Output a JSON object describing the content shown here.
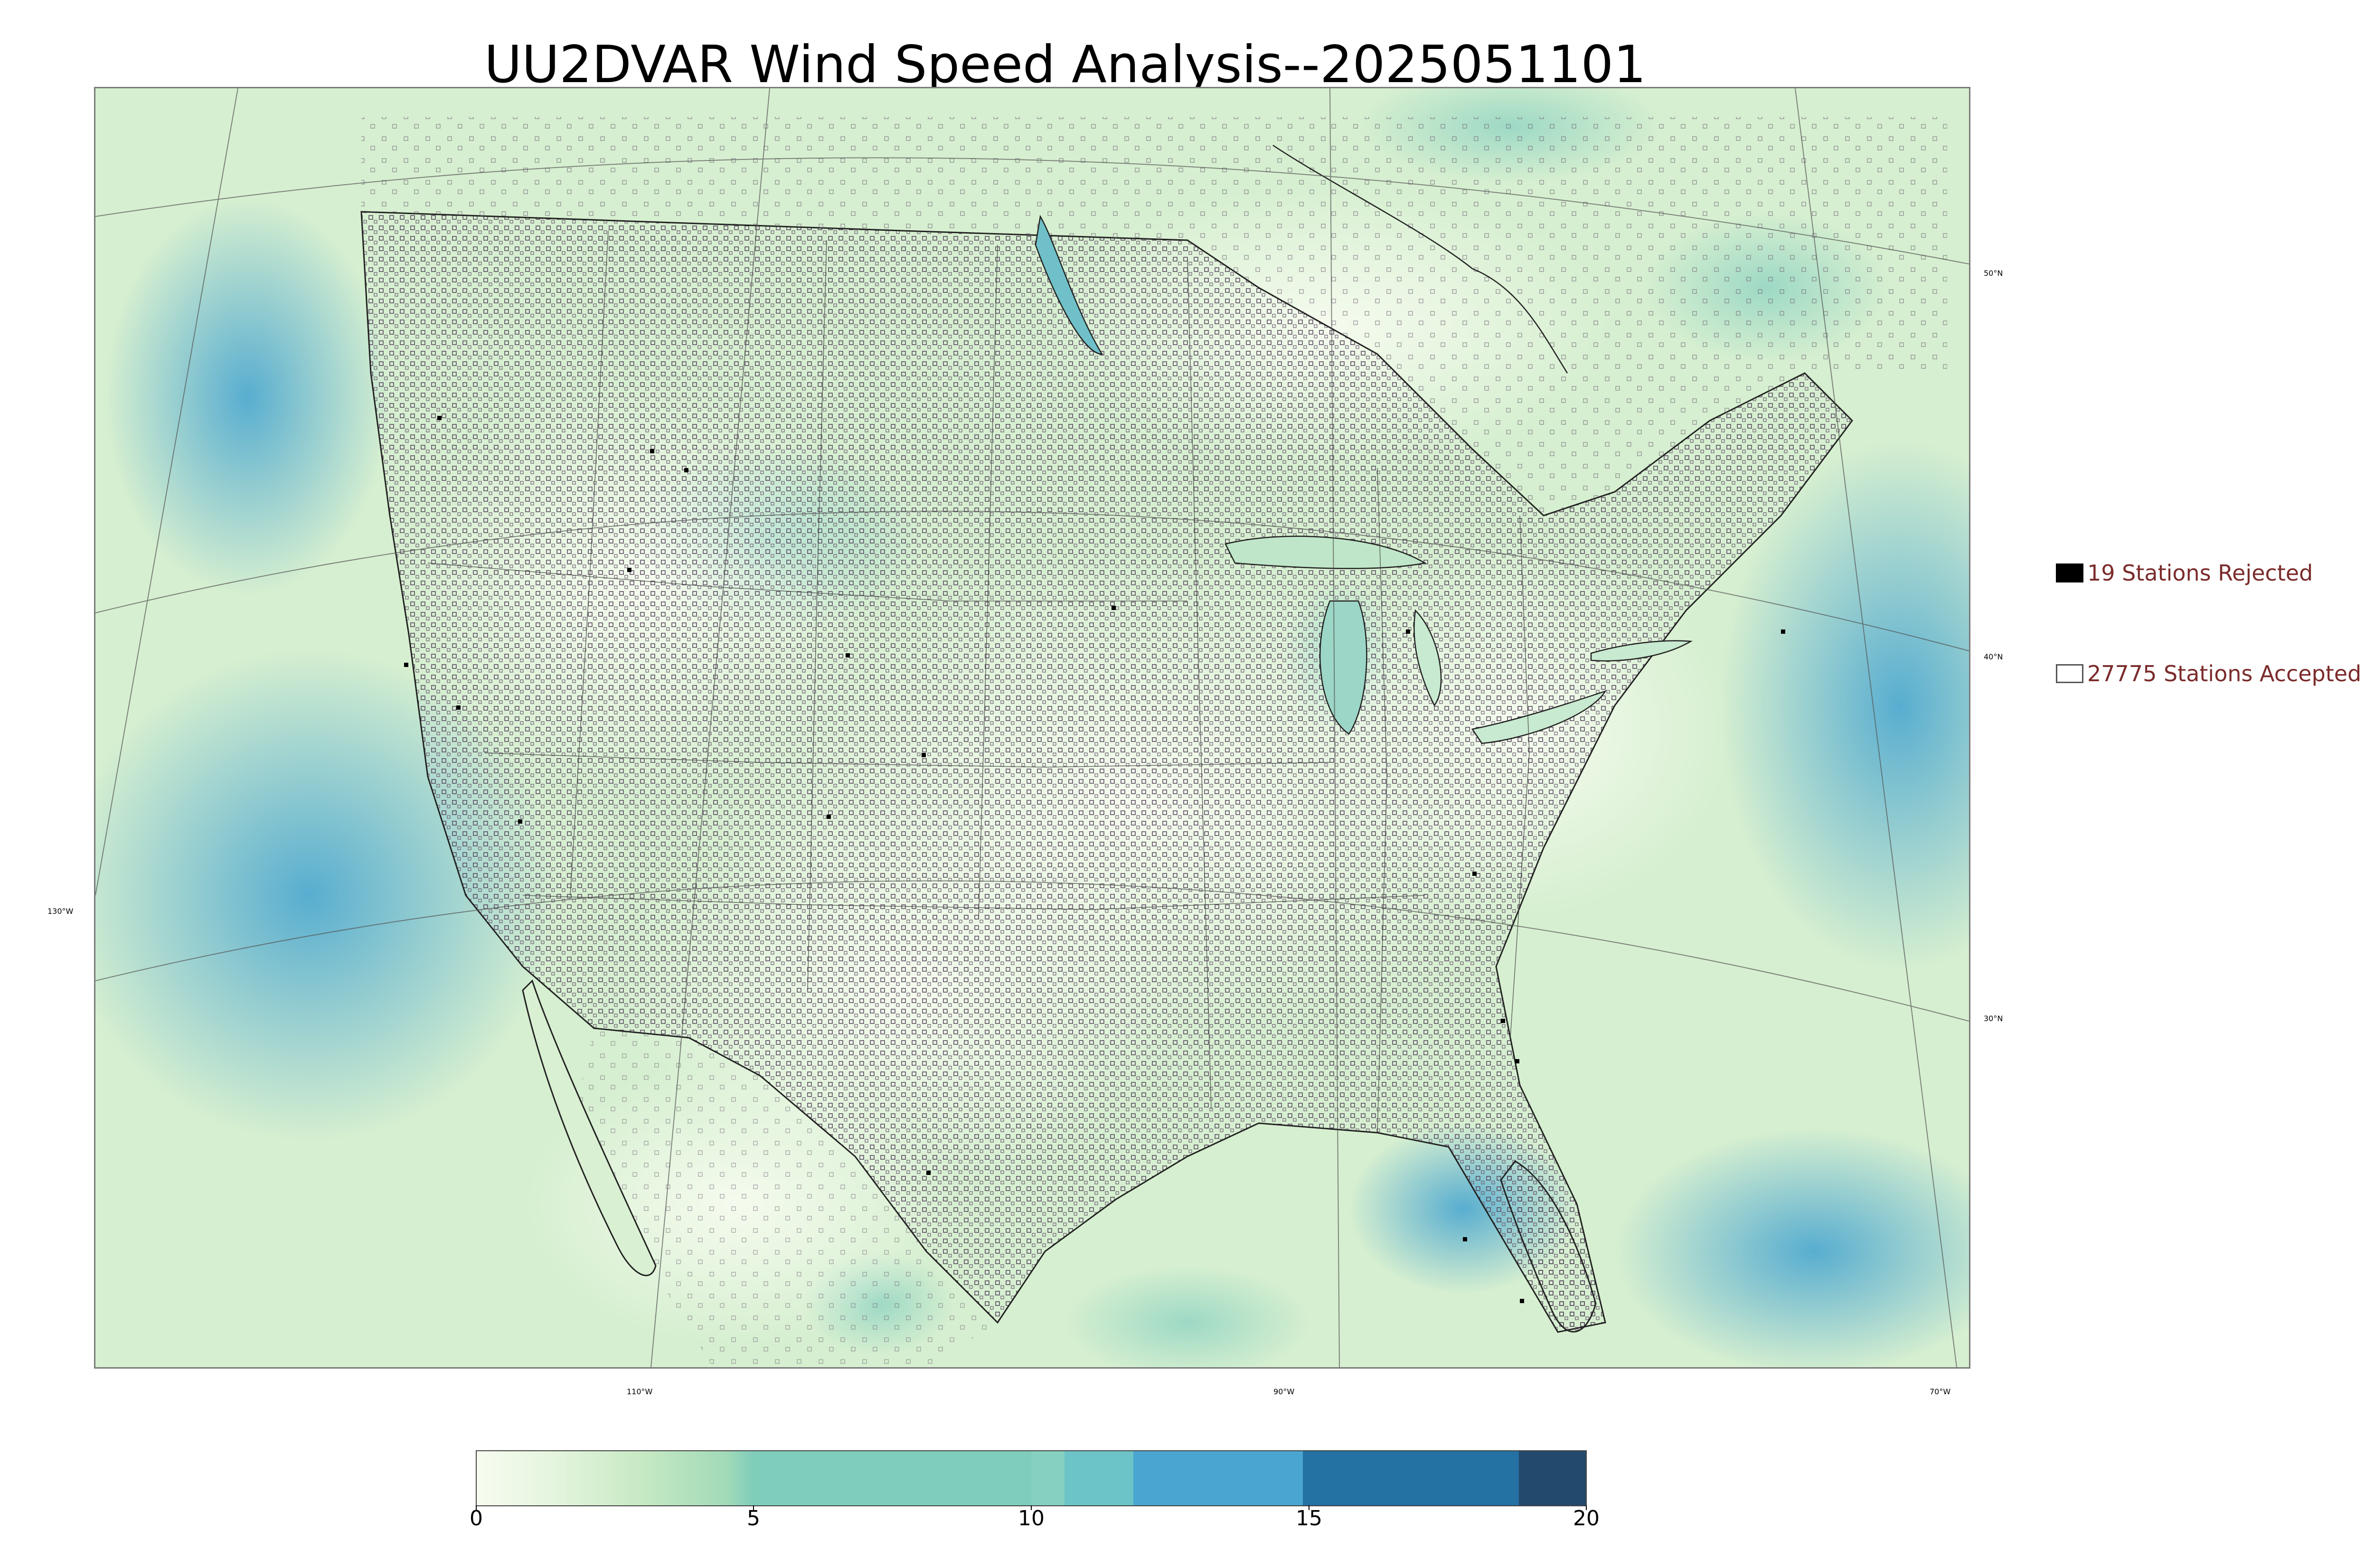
{
  "title": "UU2DVAR Wind Speed Analysis--2025051101",
  "map": {
    "lat_labels": [
      "50°N",
      "40°N",
      "30°N"
    ],
    "lon_labels": [
      "130°W",
      "110°W",
      "90°W",
      "70°W"
    ],
    "ocean_color": "#4aa6d0",
    "land_color": "#e4f4dc",
    "rejected_station_count": 19,
    "accepted_station_count": 27775
  },
  "legend": {
    "rejected": {
      "label": "19 Stations Rejected",
      "marker": "filled-black-square",
      "color": "#000000"
    },
    "accepted": {
      "label": "27775 Stations Accepted",
      "marker": "hollow-square",
      "color": "#ffffff"
    },
    "text_color": "#7b2b2b"
  },
  "colorbar": {
    "ticks": [
      "0",
      "5",
      "10",
      "15",
      "20"
    ],
    "min": 0,
    "max": 20,
    "colormap": "GnBu"
  }
}
